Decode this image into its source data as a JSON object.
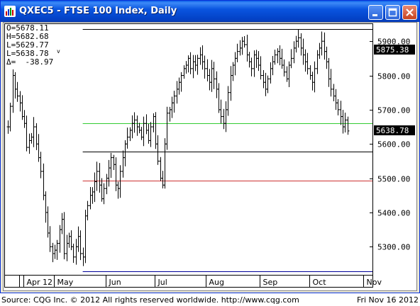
{
  "window": {
    "title": "QXEC5 - FTSE 100 Index, Daily",
    "controls": {
      "minimize": "minimize",
      "maximize": "maximize",
      "close": "close"
    }
  },
  "ohlc_box": {
    "open": "O=5678.11",
    "high": "H=5682.68",
    "low": "L=5629.77",
    "last": "L=5638.78",
    "last_marker": "v",
    "delta": "Δ=  -38.97"
  },
  "footer": {
    "source": "Source: CQG Inc. © 2012 All rights reserved worldwide. http://www.cqg.com",
    "date": "Fri Nov 16 2012"
  },
  "colors": {
    "price_box": "#000000",
    "green_line": "#33cc33",
    "red_line": "#cc3333",
    "blue_line": "#000099",
    "bars": "#000000"
  },
  "chart_data": {
    "type": "line",
    "series_style": "ohlc-bars",
    "xlabel": "",
    "ylabel": "",
    "ylim": [
      5220,
      5950
    ],
    "yticks": [
      5300,
      5400,
      5500,
      5600,
      5700,
      5800,
      5900
    ],
    "ytick_labels": [
      "5300.00",
      "5400.00",
      "5500.00",
      "5600.00",
      "5700.00",
      "5800.00",
      "5900.00"
    ],
    "month_labels": [
      "Apr 12",
      "May",
      "Jun",
      "Jul",
      "Aug",
      "Sep",
      "Oct",
      "Nov"
    ],
    "month_start_index": [
      0,
      13,
      35,
      56,
      78,
      101,
      122,
      145
    ],
    "price_label_last": "5638.78",
    "price_label_top": "5875.38",
    "horizontal_lines": [
      {
        "level": 5935,
        "color": "#000000",
        "from_index": 32
      },
      {
        "level": 5660,
        "color": "#33cc33",
        "from_index": 32
      },
      {
        "level": 5578,
        "color": "#000000",
        "from_index": 32
      },
      {
        "level": 5492,
        "color": "#cc3333",
        "from_index": 32
      },
      {
        "level": 5228,
        "color": "#000099",
        "from_index": 32
      }
    ],
    "closes": [
      5650,
      5710,
      5800,
      5760,
      5740,
      5720,
      5680,
      5660,
      5590,
      5610,
      5620,
      5650,
      5600,
      5560,
      5520,
      5450,
      5400,
      5340,
      5300,
      5280,
      5290,
      5310,
      5350,
      5380,
      5280,
      5310,
      5330,
      5300,
      5270,
      5300,
      5330,
      5280,
      5270,
      5390,
      5420,
      5450,
      5460,
      5490,
      5520,
      5480,
      5440,
      5470,
      5500,
      5530,
      5560,
      5540,
      5480,
      5470,
      5520,
      5560,
      5600,
      5620,
      5640,
      5660,
      5670,
      5650,
      5640,
      5620,
      5660,
      5640,
      5610,
      5650,
      5680,
      5600,
      5550,
      5500,
      5480,
      5600,
      5690,
      5700,
      5720,
      5740,
      5760,
      5780,
      5800,
      5820,
      5830,
      5850,
      5820,
      5840,
      5830,
      5850,
      5860,
      5840,
      5820,
      5800,
      5780,
      5820,
      5790,
      5760,
      5700,
      5680,
      5660,
      5700,
      5750,
      5800,
      5830,
      5850,
      5870,
      5880,
      5900,
      5890,
      5860,
      5840,
      5820,
      5860,
      5850,
      5830,
      5800,
      5780,
      5760,
      5790,
      5820,
      5840,
      5860,
      5870,
      5850,
      5830,
      5810,
      5790,
      5830,
      5850,
      5880,
      5900,
      5910,
      5880,
      5860,
      5840,
      5820,
      5800,
      5780,
      5820,
      5860,
      5880,
      5900,
      5870,
      5840,
      5790,
      5760,
      5740,
      5720,
      5700,
      5680,
      5650,
      5670,
      5638
    ]
  }
}
